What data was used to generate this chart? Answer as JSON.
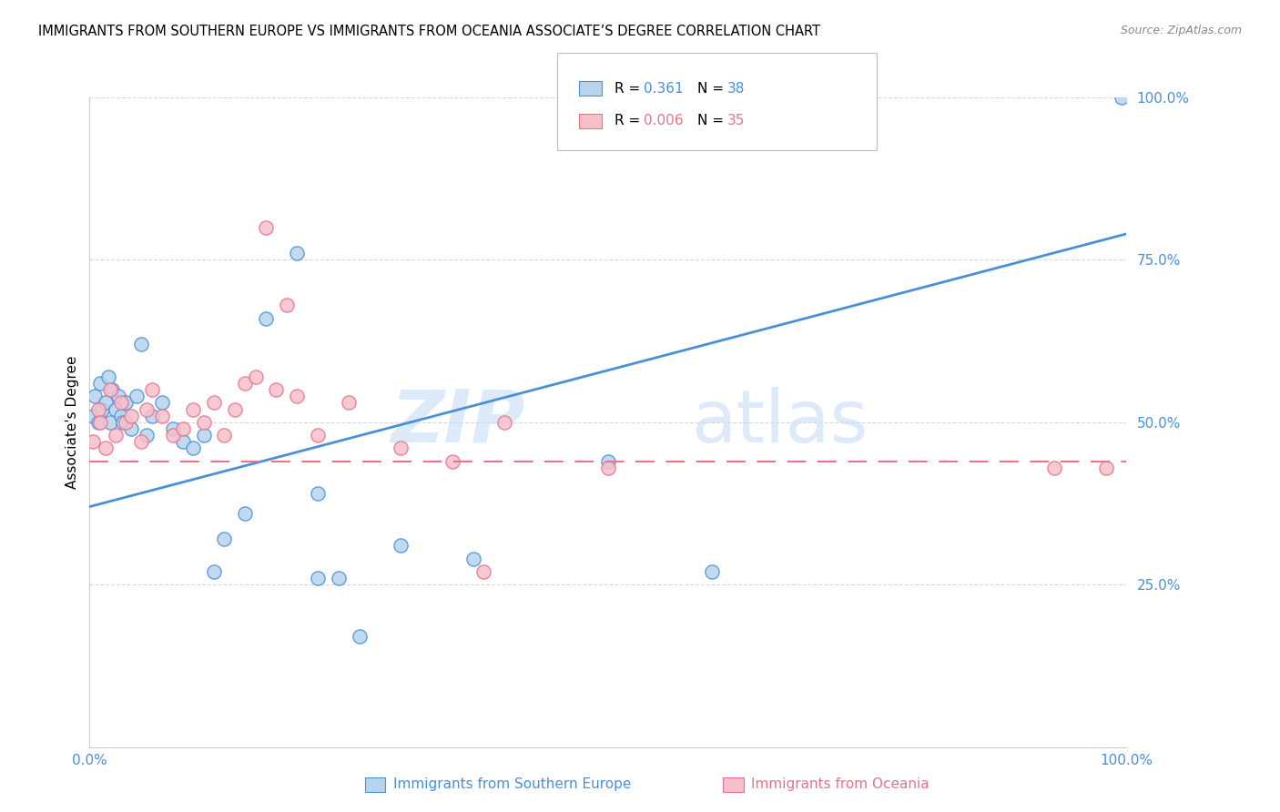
{
  "title": "IMMIGRANTS FROM SOUTHERN EUROPE VS IMMIGRANTS FROM OCEANIA ASSOCIATE’S DEGREE CORRELATION CHART",
  "source": "Source: ZipAtlas.com",
  "ylabel": "Associate's Degree",
  "xlim": [
    0,
    100
  ],
  "ylim": [
    0,
    100
  ],
  "watermark_zip": "ZIP",
  "watermark_atlas": "atlas",
  "legend_r1": "R = ",
  "legend_v1": "0.361",
  "legend_n1": "N = ",
  "legend_nv1": "38",
  "legend_r2": "R = ",
  "legend_v2": "0.006",
  "legend_n2": "N = ",
  "legend_nv2": "35",
  "blue_scatter_x": [
    0.3,
    0.5,
    0.8,
    1.0,
    1.2,
    1.5,
    1.8,
    2.0,
    2.2,
    2.5,
    2.8,
    3.0,
    3.2,
    3.5,
    4.0,
    4.5,
    5.0,
    5.5,
    6.0,
    7.0,
    8.0,
    9.0,
    10.0,
    11.0,
    12.0,
    13.0,
    15.0,
    17.0,
    20.0,
    22.0,
    24.0,
    26.0,
    30.0,
    37.0,
    50.0,
    60.0,
    22.0,
    99.5
  ],
  "blue_scatter_y": [
    51,
    54,
    50,
    56,
    52,
    53,
    57,
    50,
    55,
    52,
    54,
    51,
    50,
    53,
    49,
    54,
    62,
    48,
    51,
    53,
    49,
    47,
    46,
    48,
    27,
    32,
    36,
    66,
    76,
    39,
    26,
    17,
    31,
    29,
    44,
    27,
    26,
    100
  ],
  "pink_scatter_x": [
    0.3,
    0.8,
    1.0,
    1.5,
    2.0,
    2.5,
    3.0,
    3.5,
    4.0,
    5.0,
    5.5,
    6.0,
    7.0,
    8.0,
    9.0,
    10.0,
    11.0,
    12.0,
    13.0,
    14.0,
    15.0,
    16.0,
    18.0,
    20.0,
    22.0,
    17.0,
    19.0,
    35.0,
    38.0,
    50.0,
    40.0,
    30.0,
    25.0,
    93.0,
    98.0
  ],
  "pink_scatter_y": [
    47,
    52,
    50,
    46,
    55,
    48,
    53,
    50,
    51,
    47,
    52,
    55,
    51,
    48,
    49,
    52,
    50,
    53,
    48,
    52,
    56,
    57,
    55,
    54,
    48,
    80,
    68,
    44,
    27,
    43,
    50,
    46,
    53,
    43,
    43
  ],
  "blue_line_x": [
    0,
    100
  ],
  "blue_line_y": [
    37,
    79
  ],
  "pink_line_x": [
    0,
    100
  ],
  "pink_line_y": [
    44,
    44
  ],
  "blue_color": "#4a90d9",
  "pink_color": "#e8748a",
  "scatter_blue_face": "#b8d4ed",
  "scatter_pink_face": "#f5c0cc",
  "grid_color": "#d8d8d8",
  "axis_color": "#4a90d9",
  "bottom_label_blue": "Immigrants from Southern Europe",
  "bottom_label_pink": "Immigrants from Oceania"
}
